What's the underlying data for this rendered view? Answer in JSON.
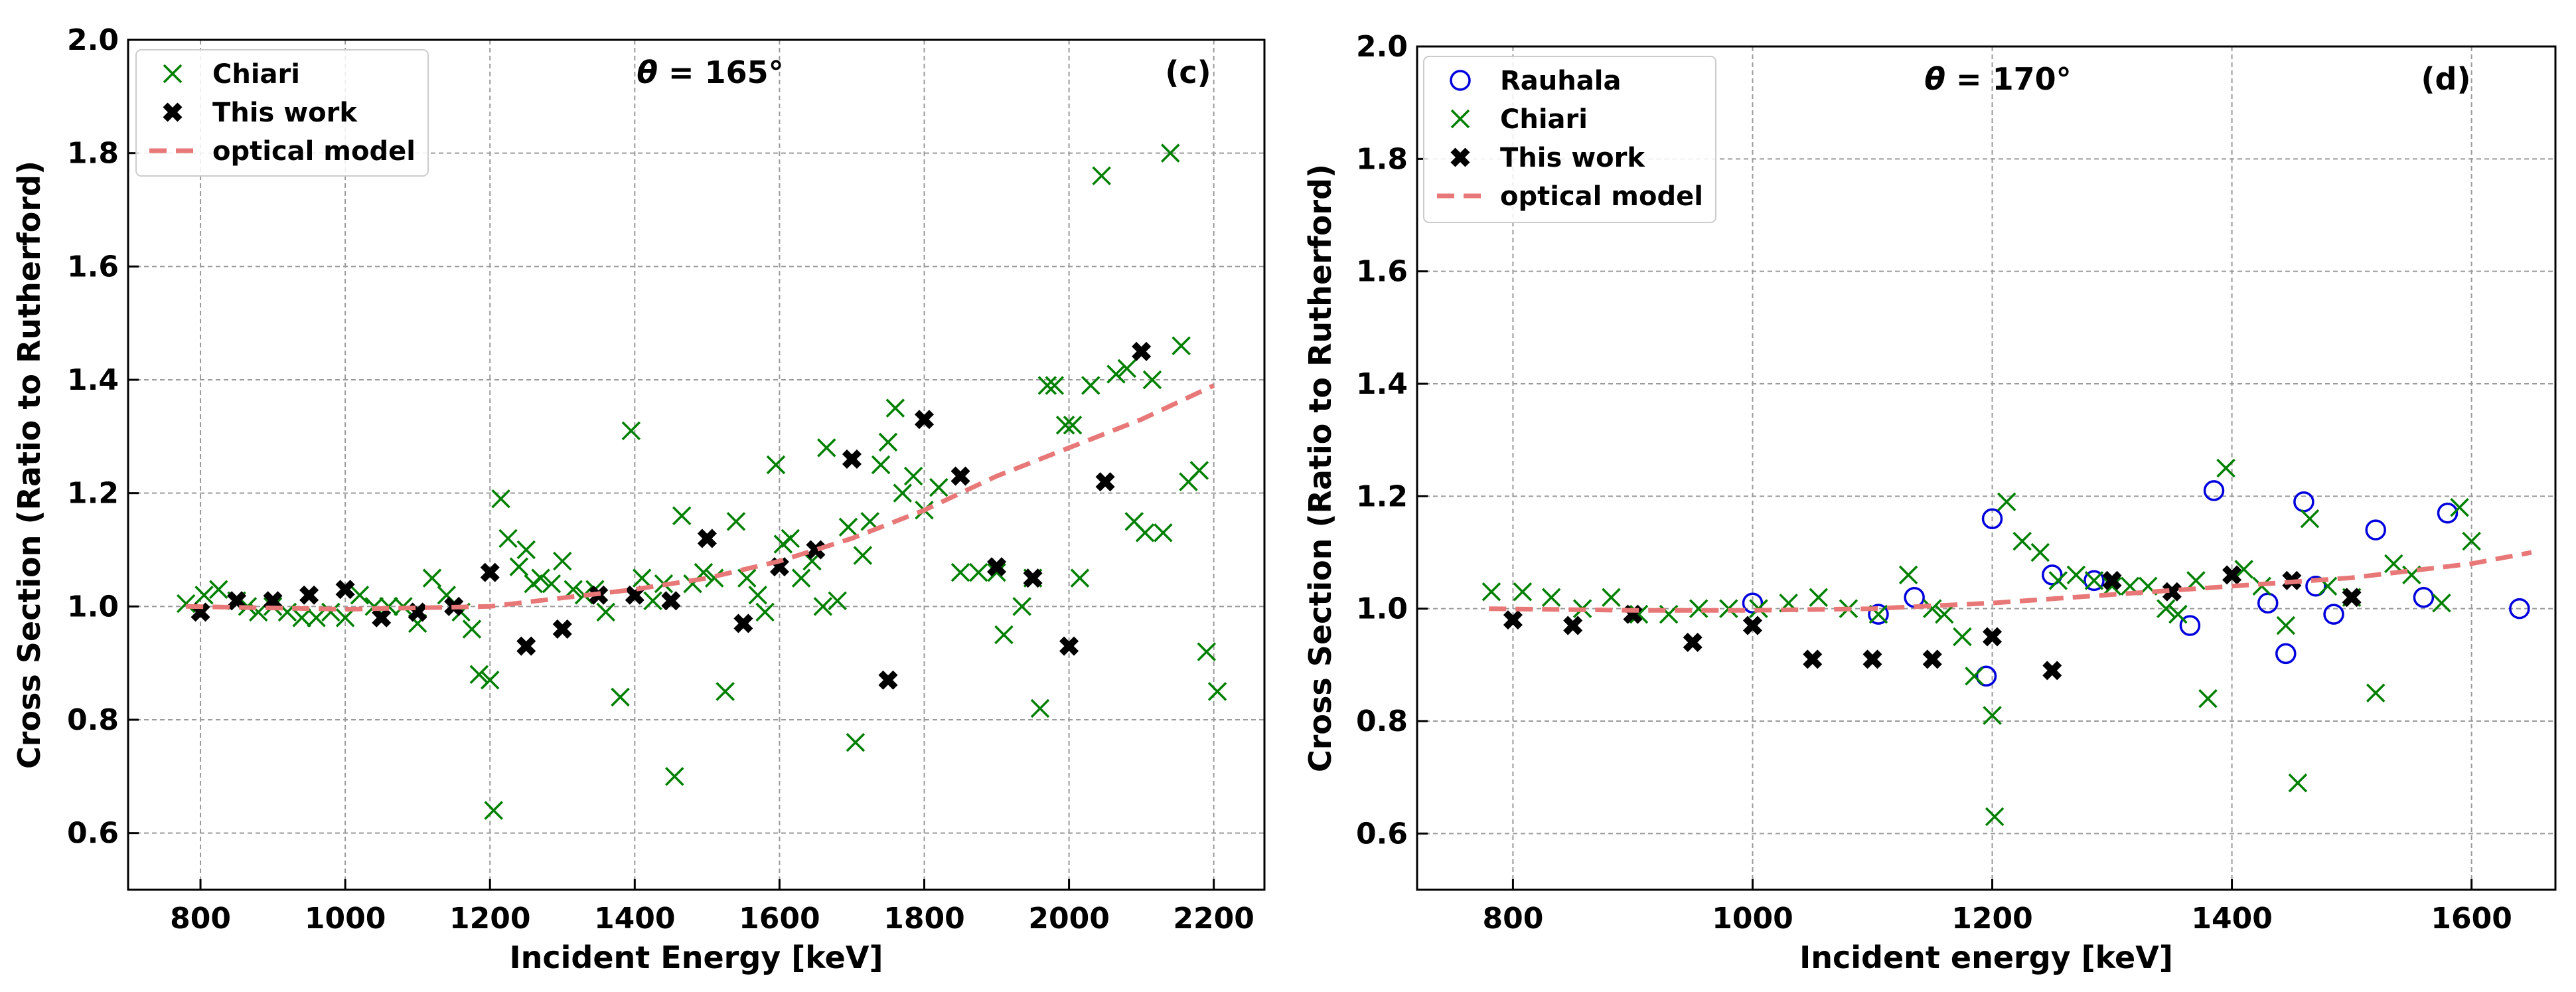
{
  "chart_data": [
    {
      "panel_label": "(c)",
      "angle_symbol": "θ",
      "angle_text": " = 165°",
      "type": "scatter",
      "xlabel": "Incident Energy [keV]",
      "ylabel": "Cross Section (Ratio to Rutherford)",
      "xlim": [
        700,
        2270
      ],
      "ylim": [
        0.5,
        2.0
      ],
      "xticks": [
        800,
        1000,
        1200,
        1400,
        1600,
        1800,
        2000,
        2200
      ],
      "yticks": [
        0.6,
        0.8,
        1.0,
        1.2,
        1.4,
        1.6,
        1.8,
        2.0
      ],
      "grid": true,
      "legend_position": "top-left",
      "series": [
        {
          "name": "Chiari",
          "marker": "x",
          "color": "#008000",
          "points": [
            [
              780,
              1.005
            ],
            [
              805,
              1.02
            ],
            [
              825,
              1.03
            ],
            [
              850,
              1.01
            ],
            [
              865,
              1.0
            ],
            [
              880,
              0.99
            ],
            [
              900,
              1.0
            ],
            [
              920,
              0.99
            ],
            [
              940,
              0.98
            ],
            [
              960,
              0.98
            ],
            [
              980,
              0.99
            ],
            [
              1000,
              0.98
            ],
            [
              1020,
              1.02
            ],
            [
              1040,
              1.0
            ],
            [
              1060,
              1.0
            ],
            [
              1080,
              1.0
            ],
            [
              1100,
              0.97
            ],
            [
              1120,
              1.05
            ],
            [
              1140,
              1.02
            ],
            [
              1160,
              0.99
            ],
            [
              1175,
              0.96
            ],
            [
              1185,
              0.88
            ],
            [
              1200,
              0.87
            ],
            [
              1205,
              0.64
            ],
            [
              1215,
              1.19
            ],
            [
              1225,
              1.12
            ],
            [
              1240,
              1.07
            ],
            [
              1250,
              1.1
            ],
            [
              1260,
              1.04
            ],
            [
              1270,
              1.05
            ],
            [
              1285,
              1.04
            ],
            [
              1300,
              1.08
            ],
            [
              1315,
              1.03
            ],
            [
              1330,
              1.02
            ],
            [
              1345,
              1.03
            ],
            [
              1360,
              0.99
            ],
            [
              1380,
              0.84
            ],
            [
              1395,
              1.31
            ],
            [
              1410,
              1.05
            ],
            [
              1425,
              1.01
            ],
            [
              1440,
              1.04
            ],
            [
              1455,
              0.7
            ],
            [
              1465,
              1.16
            ],
            [
              1480,
              1.04
            ],
            [
              1495,
              1.06
            ],
            [
              1510,
              1.05
            ],
            [
              1525,
              0.85
            ],
            [
              1540,
              1.15
            ],
            [
              1555,
              1.05
            ],
            [
              1570,
              1.02
            ],
            [
              1580,
              0.99
            ],
            [
              1595,
              1.25
            ],
            [
              1605,
              1.11
            ],
            [
              1615,
              1.12
            ],
            [
              1630,
              1.05
            ],
            [
              1645,
              1.08
            ],
            [
              1660,
              1.0
            ],
            [
              1665,
              1.28
            ],
            [
              1680,
              1.01
            ],
            [
              1695,
              1.14
            ],
            [
              1705,
              0.76
            ],
            [
              1715,
              1.09
            ],
            [
              1725,
              1.15
            ],
            [
              1740,
              1.25
            ],
            [
              1750,
              1.29
            ],
            [
              1760,
              1.35
            ],
            [
              1770,
              1.2
            ],
            [
              1785,
              1.23
            ],
            [
              1800,
              1.17
            ],
            [
              1820,
              1.21
            ],
            [
              1850,
              1.06
            ],
            [
              1875,
              1.06
            ],
            [
              1900,
              1.06
            ],
            [
              1910,
              0.95
            ],
            [
              1935,
              1.0
            ],
            [
              1950,
              1.05
            ],
            [
              1960,
              0.82
            ],
            [
              1970,
              1.39
            ],
            [
              1980,
              1.39
            ],
            [
              1995,
              1.32
            ],
            [
              2005,
              1.32
            ],
            [
              2015,
              1.05
            ],
            [
              2030,
              1.39
            ],
            [
              2045,
              1.76
            ],
            [
              2065,
              1.41
            ],
            [
              2080,
              1.42
            ],
            [
              2090,
              1.15
            ],
            [
              2105,
              1.13
            ],
            [
              2115,
              1.4
            ],
            [
              2130,
              1.13
            ],
            [
              2140,
              1.8
            ],
            [
              2155,
              1.46
            ],
            [
              2165,
              1.22
            ],
            [
              2180,
              1.24
            ],
            [
              2190,
              0.92
            ],
            [
              2205,
              0.85
            ]
          ]
        },
        {
          "name": "This work",
          "marker": "X",
          "color": "#000000",
          "points": [
            [
              800,
              0.99
            ],
            [
              850,
              1.01
            ],
            [
              900,
              1.01
            ],
            [
              950,
              1.02
            ],
            [
              1000,
              1.03
            ],
            [
              1050,
              0.98
            ],
            [
              1100,
              0.99
            ],
            [
              1150,
              1.0
            ],
            [
              1200,
              1.06
            ],
            [
              1250,
              0.93
            ],
            [
              1300,
              0.96
            ],
            [
              1350,
              1.02
            ],
            [
              1400,
              1.02
            ],
            [
              1450,
              1.01
            ],
            [
              1500,
              1.12
            ],
            [
              1550,
              0.97
            ],
            [
              1600,
              1.07
            ],
            [
              1650,
              1.1
            ],
            [
              1700,
              1.26
            ],
            [
              1750,
              0.87
            ],
            [
              1800,
              1.33
            ],
            [
              1850,
              1.23
            ],
            [
              1900,
              1.07
            ],
            [
              1950,
              1.05
            ],
            [
              2000,
              0.93
            ],
            [
              2050,
              1.22
            ],
            [
              2100,
              1.45
            ]
          ]
        },
        {
          "name": "optical model",
          "marker": "dashed-line",
          "color": "#e87878",
          "points": [
            [
              780,
              1.0
            ],
            [
              1000,
              0.995
            ],
            [
              1200,
              1.0
            ],
            [
              1400,
              1.03
            ],
            [
              1500,
              1.05
            ],
            [
              1600,
              1.08
            ],
            [
              1700,
              1.12
            ],
            [
              1800,
              1.17
            ],
            [
              1900,
              1.23
            ],
            [
              2000,
              1.28
            ],
            [
              2100,
              1.33
            ],
            [
              2200,
              1.39
            ]
          ]
        }
      ]
    },
    {
      "panel_label": "(d)",
      "angle_symbol": "θ",
      "angle_text": " = 170°",
      "type": "scatter",
      "xlabel": "Incident energy [keV]",
      "ylabel": "Cross Section (Ratio to Rutherford)",
      "xlim": [
        720,
        1670
      ],
      "ylim": [
        0.5,
        2.0
      ],
      "xticks": [
        800,
        1000,
        1200,
        1400,
        1600
      ],
      "yticks": [
        0.6,
        0.8,
        1.0,
        1.2,
        1.4,
        1.6,
        1.8,
        2.0
      ],
      "grid": true,
      "legend_position": "top-left",
      "series": [
        {
          "name": "Rauhala",
          "marker": "o",
          "color": "#0000dd",
          "points": [
            [
              1000,
              1.01
            ],
            [
              1105,
              0.99
            ],
            [
              1135,
              1.02
            ],
            [
              1195,
              0.88
            ],
            [
              1200,
              1.16
            ],
            [
              1250,
              1.06
            ],
            [
              1285,
              1.05
            ],
            [
              1365,
              0.97
            ],
            [
              1385,
              1.21
            ],
            [
              1430,
              1.01
            ],
            [
              1445,
              0.92
            ],
            [
              1460,
              1.19
            ],
            [
              1470,
              1.04
            ],
            [
              1485,
              0.99
            ],
            [
              1520,
              1.14
            ],
            [
              1560,
              1.02
            ],
            [
              1580,
              1.17
            ],
            [
              1640,
              1.0
            ]
          ]
        },
        {
          "name": "Chiari",
          "marker": "x",
          "color": "#008000",
          "points": [
            [
              782,
              1.03
            ],
            [
              808,
              1.03
            ],
            [
              832,
              1.02
            ],
            [
              858,
              1.0
            ],
            [
              882,
              1.02
            ],
            [
              905,
              0.99
            ],
            [
              930,
              0.99
            ],
            [
              955,
              1.0
            ],
            [
              980,
              1.0
            ],
            [
              1005,
              1.0
            ],
            [
              1030,
              1.01
            ],
            [
              1055,
              1.02
            ],
            [
              1080,
              1.0
            ],
            [
              1105,
              0.99
            ],
            [
              1130,
              1.06
            ],
            [
              1150,
              1.0
            ],
            [
              1160,
              0.99
            ],
            [
              1175,
              0.95
            ],
            [
              1185,
              0.88
            ],
            [
              1200,
              0.81
            ],
            [
              1202,
              0.63
            ],
            [
              1212,
              1.19
            ],
            [
              1225,
              1.12
            ],
            [
              1240,
              1.1
            ],
            [
              1255,
              1.05
            ],
            [
              1270,
              1.06
            ],
            [
              1285,
              1.05
            ],
            [
              1300,
              1.04
            ],
            [
              1315,
              1.04
            ],
            [
              1330,
              1.04
            ],
            [
              1345,
              1.0
            ],
            [
              1355,
              0.99
            ],
            [
              1370,
              1.05
            ],
            [
              1380,
              0.84
            ],
            [
              1395,
              1.25
            ],
            [
              1410,
              1.07
            ],
            [
              1425,
              1.04
            ],
            [
              1445,
              0.97
            ],
            [
              1455,
              0.69
            ],
            [
              1465,
              1.16
            ],
            [
              1480,
              1.04
            ],
            [
              1500,
              1.02
            ],
            [
              1520,
              0.85
            ],
            [
              1535,
              1.08
            ],
            [
              1550,
              1.06
            ],
            [
              1575,
              1.01
            ],
            [
              1590,
              1.18
            ],
            [
              1600,
              1.12
            ]
          ]
        },
        {
          "name": "This work",
          "marker": "X",
          "color": "#000000",
          "points": [
            [
              800,
              0.98
            ],
            [
              850,
              0.97
            ],
            [
              900,
              0.99
            ],
            [
              950,
              0.94
            ],
            [
              1000,
              0.97
            ],
            [
              1050,
              0.91
            ],
            [
              1100,
              0.91
            ],
            [
              1150,
              0.91
            ],
            [
              1200,
              0.95
            ],
            [
              1250,
              0.89
            ],
            [
              1300,
              1.05
            ],
            [
              1350,
              1.03
            ],
            [
              1400,
              1.06
            ],
            [
              1450,
              1.05
            ],
            [
              1500,
              1.02
            ]
          ]
        },
        {
          "name": "optical model",
          "marker": "dashed-line",
          "color": "#e87878",
          "points": [
            [
              780,
              1.0
            ],
            [
              900,
              0.997
            ],
            [
              1000,
              0.997
            ],
            [
              1100,
              1.0
            ],
            [
              1200,
              1.01
            ],
            [
              1300,
              1.025
            ],
            [
              1400,
              1.04
            ],
            [
              1500,
              1.055
            ],
            [
              1600,
              1.08
            ],
            [
              1650,
              1.1
            ]
          ]
        }
      ]
    }
  ]
}
